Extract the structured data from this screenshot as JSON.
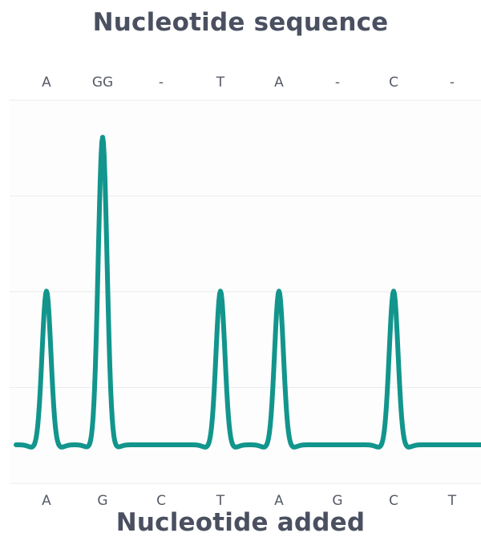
{
  "chart_data": {
    "type": "line",
    "title": "Nucleotide sequence",
    "xlabel": "Nucleotide added",
    "top_labels": [
      "A",
      "GG",
      "-",
      "T",
      "A",
      "-",
      "C",
      "-"
    ],
    "bottom_labels": [
      "A",
      "G",
      "C",
      "T",
      "A",
      "G",
      "C",
      "T"
    ],
    "series": [
      {
        "values": [
          1,
          2,
          0,
          1,
          1,
          0,
          1,
          0
        ]
      }
    ],
    "ylim": [
      0,
      2
    ],
    "grid": true,
    "colors": {
      "line": "#12958c",
      "grid": "#ececee",
      "plot_bg": "#fdfdfd",
      "text": "#4a5060"
    }
  }
}
